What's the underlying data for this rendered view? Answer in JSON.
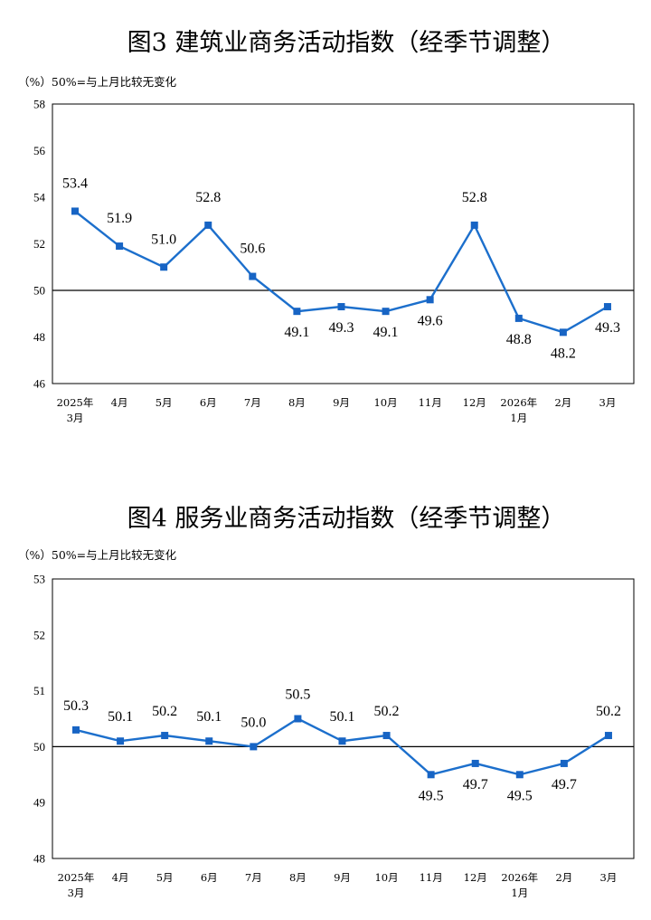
{
  "chart_data": [
    {
      "type": "line",
      "title": "图3  建筑业商务活动指数（经季节调整）",
      "note": "（%）50%=与上月比较无变化",
      "categories": [
        [
          "2025年",
          "3月"
        ],
        [
          "4月"
        ],
        [
          "5月"
        ],
        [
          "6月"
        ],
        [
          "7月"
        ],
        [
          "8月"
        ],
        [
          "9月"
        ],
        [
          "10月"
        ],
        [
          "11月"
        ],
        [
          "12月"
        ],
        [
          "2026年",
          "1月"
        ],
        [
          "2月"
        ],
        [
          "3月"
        ]
      ],
      "series": [
        {
          "values": [
            53.4,
            51.9,
            51.0,
            52.8,
            50.6,
            49.1,
            49.3,
            49.1,
            49.6,
            52.8,
            48.8,
            48.2,
            49.3
          ]
        }
      ],
      "data_labels": [
        "53.4",
        "51.9",
        "51.0",
        "52.8",
        "50.6",
        "49.1",
        "49.3",
        "49.1",
        "49.6",
        "52.8",
        "48.8",
        "48.2",
        "49.3"
      ],
      "ylim": [
        46,
        58
      ],
      "yticks": [
        46,
        48,
        50,
        52,
        54,
        56,
        58
      ],
      "reference_line": 50,
      "grid": false,
      "line_color": "#1c6fcc"
    },
    {
      "type": "line",
      "title": "图4  服务业商务活动指数（经季节调整）",
      "note": "（%）50%=与上月比较无变化",
      "categories": [
        [
          "2025年",
          "3月"
        ],
        [
          "4月"
        ],
        [
          "5月"
        ],
        [
          "6月"
        ],
        [
          "7月"
        ],
        [
          "8月"
        ],
        [
          "9月"
        ],
        [
          "10月"
        ],
        [
          "11月"
        ],
        [
          "12月"
        ],
        [
          "2026年",
          "1月"
        ],
        [
          "2月"
        ],
        [
          "3月"
        ]
      ],
      "series": [
        {
          "values": [
            50.3,
            50.1,
            50.2,
            50.1,
            50.0,
            50.5,
            50.1,
            50.2,
            49.5,
            49.7,
            49.5,
            49.7,
            50.2
          ]
        }
      ],
      "data_labels": [
        "50.3",
        "50.1",
        "50.2",
        "50.1",
        "50.0",
        "50.5",
        "50.1",
        "50.2",
        "49.5",
        "49.7",
        "49.5",
        "49.7",
        "50.2"
      ],
      "ylim": [
        48,
        53
      ],
      "yticks": [
        48,
        49,
        50,
        51,
        52,
        53
      ],
      "reference_line": 50,
      "grid": false,
      "line_color": "#1c6fcc"
    }
  ]
}
